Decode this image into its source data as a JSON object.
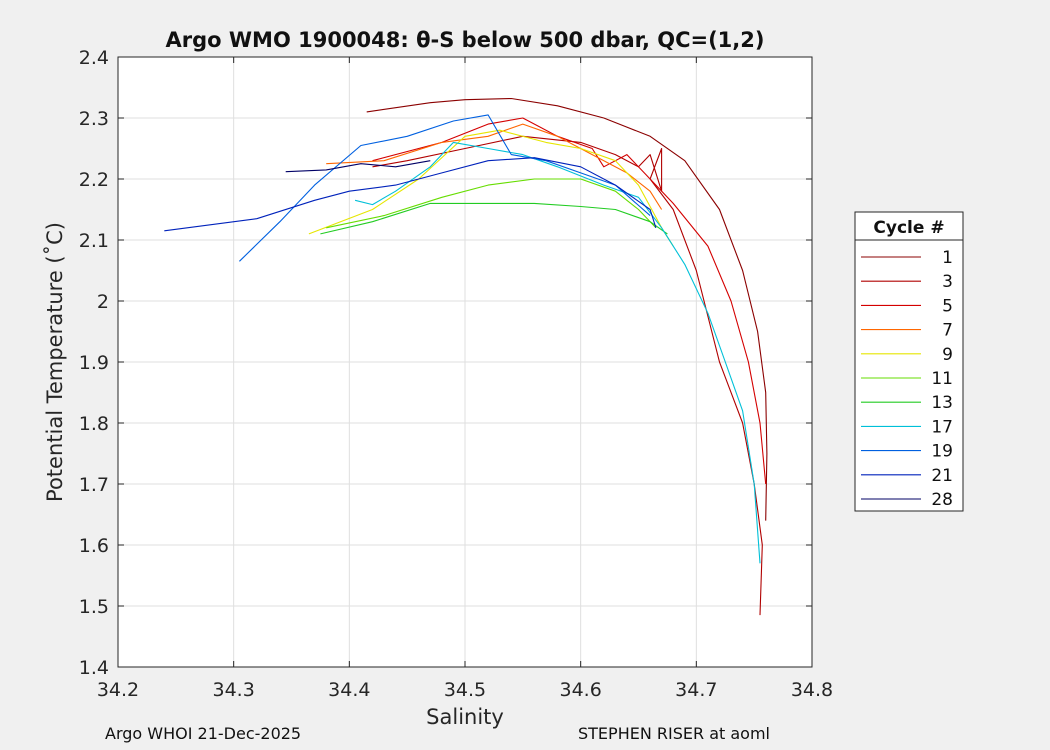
{
  "chart_data": {
    "type": "line",
    "title": "Argo WMO 1900048: θ-S below 500 dbar,  QC=(1,2)",
    "xlabel": "Salinity",
    "ylabel": "Potential Temperature (˚C)",
    "xlim": [
      34.2,
      34.8
    ],
    "ylim": [
      1.4,
      2.4
    ],
    "xticks": [
      "34.2",
      "34.3",
      "34.4",
      "34.5",
      "34.6",
      "34.7",
      "34.8"
    ],
    "yticks": [
      "1.4",
      "1.5",
      "1.6",
      "1.7",
      "1.8",
      "1.9",
      "2",
      "2.1",
      "2.2",
      "2.3",
      "2.4"
    ],
    "grid": true,
    "legend_title": "Cycle #",
    "legend_position": "outside-right",
    "series": [
      {
        "name": "1",
        "color": "#8b0000",
        "points": [
          [
            34.415,
            2.31
          ],
          [
            34.47,
            2.325
          ],
          [
            34.5,
            2.33
          ],
          [
            34.54,
            2.332
          ],
          [
            34.58,
            2.32
          ],
          [
            34.62,
            2.3
          ],
          [
            34.66,
            2.27
          ],
          [
            34.69,
            2.23
          ],
          [
            34.72,
            2.15
          ],
          [
            34.74,
            2.05
          ],
          [
            34.753,
            1.95
          ],
          [
            34.76,
            1.85
          ],
          [
            34.761,
            1.75
          ],
          [
            34.76,
            1.64
          ]
        ]
      },
      {
        "name": "3",
        "color": "#b00000",
        "points": [
          [
            34.42,
            2.22
          ],
          [
            34.45,
            2.23
          ],
          [
            34.5,
            2.25
          ],
          [
            34.55,
            2.27
          ],
          [
            34.6,
            2.26
          ],
          [
            34.63,
            2.24
          ],
          [
            34.65,
            2.22
          ],
          [
            34.66,
            2.24
          ],
          [
            34.67,
            2.18
          ],
          [
            34.67,
            2.25
          ],
          [
            34.66,
            2.2
          ],
          [
            34.68,
            2.15
          ],
          [
            34.7,
            2.05
          ],
          [
            34.72,
            1.9
          ],
          [
            34.74,
            1.8
          ],
          [
            34.75,
            1.7
          ],
          [
            34.757,
            1.6
          ],
          [
            34.755,
            1.485
          ]
        ]
      },
      {
        "name": "5",
        "color": "#d40000",
        "points": [
          [
            34.42,
            2.23
          ],
          [
            34.48,
            2.26
          ],
          [
            34.52,
            2.29
          ],
          [
            34.55,
            2.3
          ],
          [
            34.58,
            2.27
          ],
          [
            34.61,
            2.25
          ],
          [
            34.62,
            2.22
          ],
          [
            34.64,
            2.24
          ],
          [
            34.66,
            2.2
          ],
          [
            34.68,
            2.16
          ],
          [
            34.71,
            2.09
          ],
          [
            34.73,
            2.0
          ],
          [
            34.745,
            1.9
          ],
          [
            34.755,
            1.8
          ],
          [
            34.76,
            1.7
          ]
        ]
      },
      {
        "name": "7",
        "color": "#ff6600",
        "points": [
          [
            34.38,
            2.225
          ],
          [
            34.43,
            2.23
          ],
          [
            34.48,
            2.26
          ],
          [
            34.52,
            2.27
          ],
          [
            34.55,
            2.29
          ],
          [
            34.58,
            2.27
          ],
          [
            34.61,
            2.24
          ],
          [
            34.64,
            2.21
          ],
          [
            34.66,
            2.18
          ],
          [
            34.67,
            2.15
          ]
        ]
      },
      {
        "name": "9",
        "color": "#e6e600",
        "points": [
          [
            34.365,
            2.11
          ],
          [
            34.42,
            2.15
          ],
          [
            34.46,
            2.2
          ],
          [
            34.5,
            2.27
          ],
          [
            34.53,
            2.28
          ],
          [
            34.57,
            2.26
          ],
          [
            34.6,
            2.25
          ],
          [
            34.63,
            2.23
          ],
          [
            34.65,
            2.19
          ],
          [
            34.67,
            2.12
          ],
          [
            34.68,
            2.09
          ]
        ]
      },
      {
        "name": "11",
        "color": "#66dd00",
        "points": [
          [
            34.38,
            2.12
          ],
          [
            34.43,
            2.14
          ],
          [
            34.48,
            2.17
          ],
          [
            34.52,
            2.19
          ],
          [
            34.56,
            2.2
          ],
          [
            34.6,
            2.2
          ],
          [
            34.63,
            2.18
          ],
          [
            34.65,
            2.15
          ],
          [
            34.665,
            2.12
          ]
        ]
      },
      {
        "name": "13",
        "color": "#22cc22",
        "points": [
          [
            34.375,
            2.11
          ],
          [
            34.42,
            2.13
          ],
          [
            34.47,
            2.16
          ],
          [
            34.51,
            2.16
          ],
          [
            34.56,
            2.16
          ],
          [
            34.6,
            2.155
          ],
          [
            34.63,
            2.15
          ],
          [
            34.66,
            2.13
          ],
          [
            34.675,
            2.11
          ]
        ]
      },
      {
        "name": "17",
        "color": "#00c0d8",
        "points": [
          [
            34.405,
            2.165
          ],
          [
            34.42,
            2.158
          ],
          [
            34.44,
            2.18
          ],
          [
            34.47,
            2.22
          ],
          [
            34.49,
            2.26
          ],
          [
            34.52,
            2.25
          ],
          [
            34.55,
            2.24
          ],
          [
            34.58,
            2.22
          ],
          [
            34.62,
            2.19
          ],
          [
            34.65,
            2.17
          ],
          [
            34.67,
            2.12
          ],
          [
            34.69,
            2.06
          ],
          [
            34.71,
            1.98
          ],
          [
            34.725,
            1.9
          ],
          [
            34.74,
            1.82
          ],
          [
            34.75,
            1.7
          ],
          [
            34.755,
            1.57
          ]
        ]
      },
      {
        "name": "19",
        "color": "#0060e0",
        "points": [
          [
            34.305,
            2.065
          ],
          [
            34.34,
            2.13
          ],
          [
            34.37,
            2.19
          ],
          [
            34.41,
            2.255
          ],
          [
            34.45,
            2.27
          ],
          [
            34.49,
            2.295
          ],
          [
            34.52,
            2.305
          ],
          [
            34.54,
            2.24
          ],
          [
            34.57,
            2.23
          ],
          [
            34.6,
            2.21
          ],
          [
            34.63,
            2.19
          ],
          [
            34.66,
            2.14
          ]
        ]
      },
      {
        "name": "21",
        "color": "#0022bb",
        "points": [
          [
            34.24,
            2.115
          ],
          [
            34.32,
            2.135
          ],
          [
            34.37,
            2.165
          ],
          [
            34.4,
            2.18
          ],
          [
            34.44,
            2.19
          ],
          [
            34.48,
            2.21
          ],
          [
            34.52,
            2.23
          ],
          [
            34.56,
            2.235
          ],
          [
            34.6,
            2.22
          ],
          [
            34.63,
            2.19
          ],
          [
            34.66,
            2.15
          ],
          [
            34.665,
            2.12
          ]
        ]
      },
      {
        "name": "28",
        "color": "#000066",
        "points": [
          [
            34.345,
            2.212
          ],
          [
            34.38,
            2.215
          ],
          [
            34.41,
            2.225
          ],
          [
            34.44,
            2.22
          ],
          [
            34.47,
            2.23
          ]
        ]
      }
    ]
  },
  "footer": {
    "left": "Argo WHOI 21-Dec-2025",
    "right": "STEPHEN RISER at aoml"
  }
}
